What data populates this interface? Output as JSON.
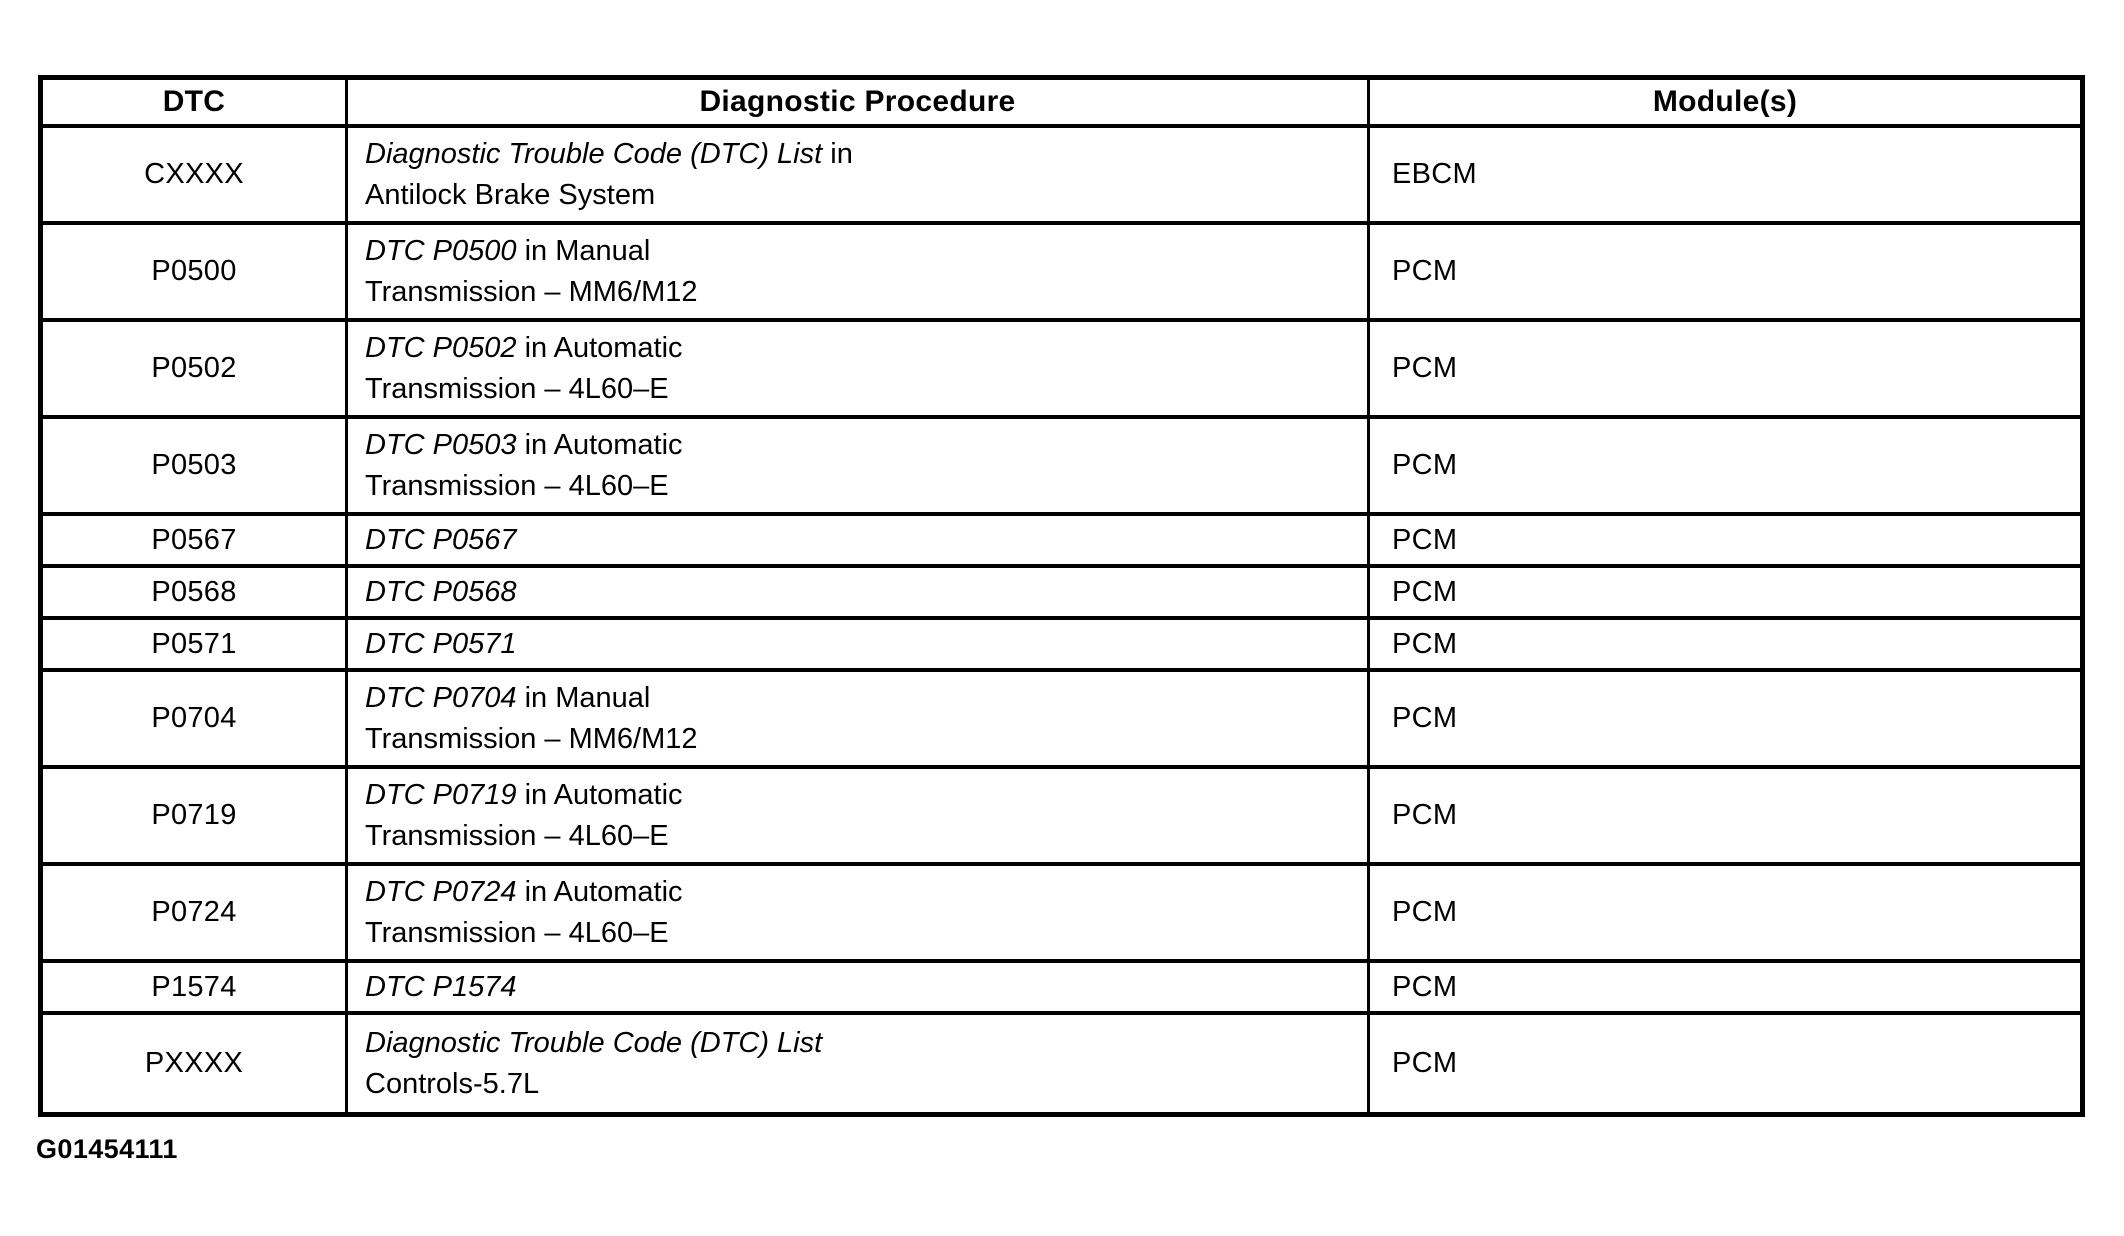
{
  "colors": {
    "ink": "#000000",
    "paper": "#ffffff"
  },
  "table": {
    "headers": [
      "DTC",
      "Diagnostic Procedure",
      "Module(s)"
    ],
    "rows": [
      {
        "dtc": "CXXXX",
        "proc_italic": "Diagnostic Trouble Code (DTC) List",
        "proc_regular": " in",
        "proc_line2": "Antilock Brake System",
        "module": "EBCM"
      },
      {
        "dtc": "P0500",
        "proc_italic": "DTC P0500",
        "proc_regular": " in Manual",
        "proc_line2": "Transmission – MM6/M12",
        "module": "PCM"
      },
      {
        "dtc": "P0502",
        "proc_italic": "DTC P0502",
        "proc_regular": " in Automatic",
        "proc_line2": "Transmission – 4L60–E",
        "module": "PCM"
      },
      {
        "dtc": "P0503",
        "proc_italic": "DTC P0503",
        "proc_regular": " in Automatic",
        "proc_line2": "Transmission – 4L60–E",
        "module": "PCM"
      },
      {
        "dtc": "P0567",
        "proc_italic": "DTC P0567",
        "proc_regular": "",
        "proc_line2": "",
        "module": "PCM"
      },
      {
        "dtc": "P0568",
        "proc_italic": "DTC P0568",
        "proc_regular": "",
        "proc_line2": "",
        "module": "PCM"
      },
      {
        "dtc": "P0571",
        "proc_italic": "DTC P0571",
        "proc_regular": "",
        "proc_line2": "",
        "module": "PCM"
      },
      {
        "dtc": "P0704",
        "proc_italic": "DTC P0704",
        "proc_regular": " in Manual",
        "proc_line2": "Transmission – MM6/M12",
        "module": "PCM"
      },
      {
        "dtc": "P0719",
        "proc_italic": "DTC P0719",
        "proc_regular": " in Automatic",
        "proc_line2": "Transmission – 4L60–E",
        "module": "PCM"
      },
      {
        "dtc": "P0724",
        "proc_italic": "DTC P0724",
        "proc_regular": " in Automatic",
        "proc_line2": "Transmission – 4L60–E",
        "module": "PCM"
      },
      {
        "dtc": "P1574",
        "proc_italic": "DTC P1574",
        "proc_regular": "",
        "proc_line2": "",
        "module": "PCM"
      },
      {
        "dtc": "PXXXX",
        "proc_italic": "Diagnostic Trouble Code (DTC) List",
        "proc_regular": "",
        "proc_line2": "Controls-5.7L",
        "module": "PCM"
      }
    ]
  },
  "footer": {
    "figure_id": "G01454111"
  }
}
